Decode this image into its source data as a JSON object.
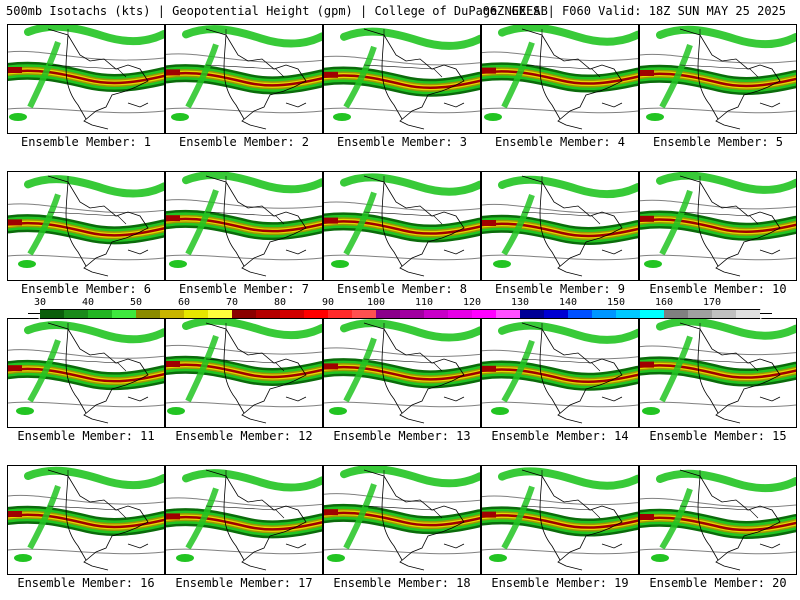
{
  "header": {
    "title": "500mb Isotachs (kts) | Geopotential Height (gpm) | College of DuPage NEXLAB",
    "run": "06Z GEFS | F060 Valid: 18Z SUN MAY 25 2025"
  },
  "colorbar": {
    "labels": [
      "30",
      "40",
      "50",
      "60",
      "70",
      "80",
      "90",
      "100",
      "110",
      "120",
      "130",
      "140",
      "150",
      "160",
      "170"
    ],
    "colors": [
      "#0b5e0b",
      "#1a8a1a",
      "#22b422",
      "#3ee83e",
      "#8b8b00",
      "#c8b400",
      "#e6e600",
      "#ffff3c",
      "#8b0000",
      "#b40000",
      "#d20000",
      "#ff0000",
      "#ff2a2a",
      "#ff5050",
      "#8b008b",
      "#a000a0",
      "#c800c8",
      "#e600e6",
      "#ff00ff",
      "#ff50ff",
      "#000096",
      "#0000d2",
      "#0050ff",
      "#0096ff",
      "#00c8ff",
      "#00ffff",
      "#808080",
      "#a0a0a0",
      "#c0c0c0",
      "#e0e0e0"
    ]
  },
  "members": [
    "Ensemble Member: 1",
    "Ensemble Member: 2",
    "Ensemble Member: 3",
    "Ensemble Member: 4",
    "Ensemble Member: 5",
    "Ensemble Member: 6",
    "Ensemble Member: 7",
    "Ensemble Member: 8",
    "Ensemble Member: 9",
    "Ensemble Member: 10",
    "Ensemble Member: 11",
    "Ensemble Member: 12",
    "Ensemble Member: 13",
    "Ensemble Member: 14",
    "Ensemble Member: 15",
    "Ensemble Member: 16",
    "Ensemble Member: 17",
    "Ensemble Member: 18",
    "Ensemble Member: 19",
    "Ensemble Member: 20"
  ],
  "colors": {
    "jet_dark_green": "#0b6b0b",
    "jet_green": "#22c422",
    "jet_light_green": "#3ee83e",
    "jet_olive": "#9a9a00",
    "jet_yellow": "#e6d800",
    "jet_core": "#a00000",
    "height_contour": "#808080",
    "coastline": "#000000"
  }
}
